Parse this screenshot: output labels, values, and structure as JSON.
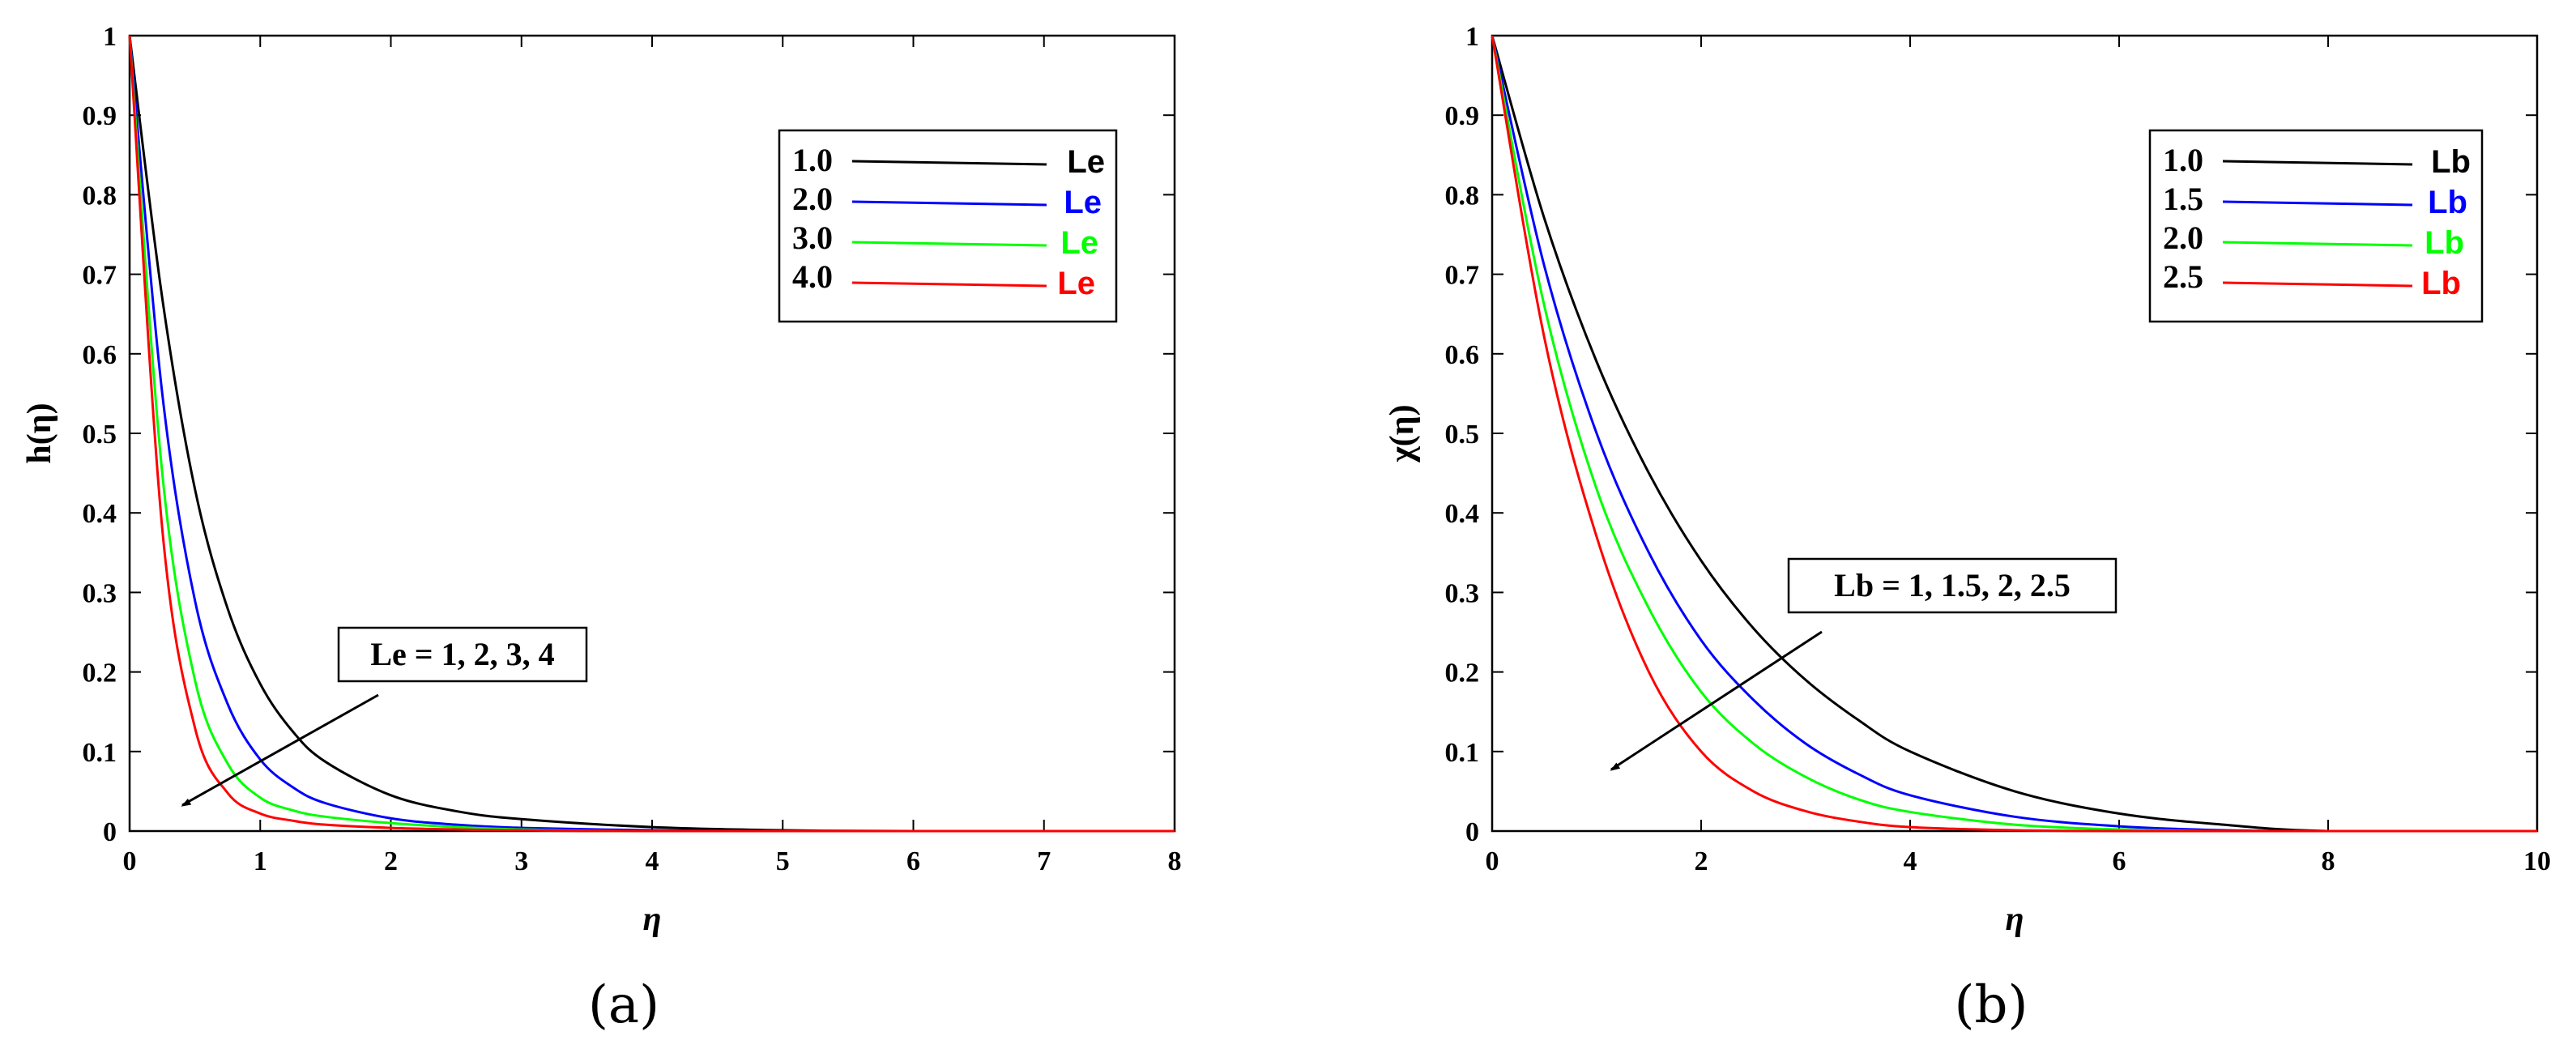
{
  "chart_data": [
    {
      "type": "line",
      "panel_label": "(a)",
      "xlabel": "η",
      "ylabel": "h(η)",
      "xlim": [
        0,
        8
      ],
      "ylim": [
        0,
        1
      ],
      "xticks": [
        "0",
        "1",
        "2",
        "3",
        "4",
        "5",
        "6",
        "7",
        "8"
      ],
      "yticks": [
        "0",
        "0.1",
        "0.2",
        "0.3",
        "0.4",
        "0.5",
        "0.6",
        "0.7",
        "0.8",
        "0.9",
        "1"
      ],
      "grid": false,
      "legend_position": "top-right",
      "annotation": "Le = 1, 2, 3, 4",
      "series": [
        {
          "name": "Le",
          "value_label": "1.0",
          "color": "#000000",
          "x": [
            0,
            0.25,
            0.5,
            0.75,
            1,
            1.25,
            1.5,
            2,
            2.5,
            3,
            4,
            5,
            6,
            8
          ],
          "y": [
            1,
            0.67,
            0.43,
            0.28,
            0.185,
            0.125,
            0.087,
            0.045,
            0.025,
            0.015,
            0.005,
            0.001,
            0,
            0
          ]
        },
        {
          "name": "Le",
          "value_label": "2.0",
          "color": "#0000ff",
          "x": [
            0,
            0.25,
            0.5,
            0.75,
            1,
            1.25,
            1.5,
            2,
            2.5,
            3,
            4,
            5,
            8
          ],
          "y": [
            1,
            0.55,
            0.29,
            0.16,
            0.09,
            0.055,
            0.035,
            0.016,
            0.008,
            0.004,
            0.001,
            0,
            0
          ]
        },
        {
          "name": "Le",
          "value_label": "3.0",
          "color": "#00ff00",
          "x": [
            0,
            0.25,
            0.5,
            0.75,
            1,
            1.25,
            1.5,
            2,
            2.5,
            3,
            4,
            8
          ],
          "y": [
            1,
            0.45,
            0.19,
            0.085,
            0.042,
            0.026,
            0.018,
            0.01,
            0.005,
            0.002,
            0,
            0
          ]
        },
        {
          "name": "Le",
          "value_label": "4.0",
          "color": "#ff0000",
          "x": [
            0,
            0.25,
            0.5,
            0.75,
            1,
            1.25,
            1.5,
            2,
            2.5,
            3,
            4,
            8
          ],
          "y": [
            1,
            0.38,
            0.13,
            0.048,
            0.022,
            0.013,
            0.008,
            0.004,
            0.002,
            0.001,
            0,
            0
          ]
        }
      ]
    },
    {
      "type": "line",
      "panel_label": "(b)",
      "xlabel": "η",
      "ylabel": "χ(η)",
      "xlim": [
        0,
        10
      ],
      "ylim": [
        0,
        1
      ],
      "xticks": [
        "0",
        "2",
        "4",
        "6",
        "8",
        "10"
      ],
      "yticks": [
        "0",
        "0.1",
        "0.2",
        "0.3",
        "0.4",
        "0.5",
        "0.6",
        "0.7",
        "0.8",
        "0.9",
        "1"
      ],
      "grid": false,
      "legend_position": "top-right",
      "annotation": "Lb = 1, 1.5, 2, 2.5",
      "series": [
        {
          "name": "Lb",
          "value_label": "1.0",
          "color": "#000000",
          "x": [
            0,
            0.5,
            1,
            1.5,
            2,
            2.5,
            3,
            3.5,
            4,
            5,
            6,
            7,
            8,
            10
          ],
          "y": [
            1,
            0.77,
            0.59,
            0.45,
            0.34,
            0.255,
            0.19,
            0.14,
            0.1,
            0.05,
            0.022,
            0.008,
            0,
            0
          ]
        },
        {
          "name": "Lb",
          "value_label": "1.5",
          "color": "#0000ff",
          "x": [
            0,
            0.5,
            1,
            1.5,
            2,
            2.5,
            3,
            3.5,
            4,
            5,
            6,
            7,
            8,
            10
          ],
          "y": [
            1,
            0.71,
            0.5,
            0.35,
            0.24,
            0.165,
            0.11,
            0.072,
            0.045,
            0.018,
            0.006,
            0.001,
            0,
            0
          ]
        },
        {
          "name": "Lb",
          "value_label": "2.0",
          "color": "#00ff00",
          "x": [
            0,
            0.5,
            1,
            1.5,
            2,
            2.5,
            3,
            3.5,
            4,
            5,
            6,
            7,
            8,
            10
          ],
          "y": [
            1,
            0.66,
            0.43,
            0.28,
            0.175,
            0.11,
            0.068,
            0.04,
            0.024,
            0.008,
            0.002,
            0,
            0,
            0
          ]
        },
        {
          "name": "Lb",
          "value_label": "2.5",
          "color": "#ff0000",
          "x": [
            0,
            0.5,
            1,
            1.5,
            2,
            2.5,
            3,
            3.5,
            4,
            5,
            6,
            7,
            8,
            10
          ],
          "y": [
            1,
            0.62,
            0.37,
            0.2,
            0.1,
            0.05,
            0.025,
            0.012,
            0.005,
            0.001,
            0,
            0,
            0,
            0
          ]
        }
      ]
    }
  ]
}
